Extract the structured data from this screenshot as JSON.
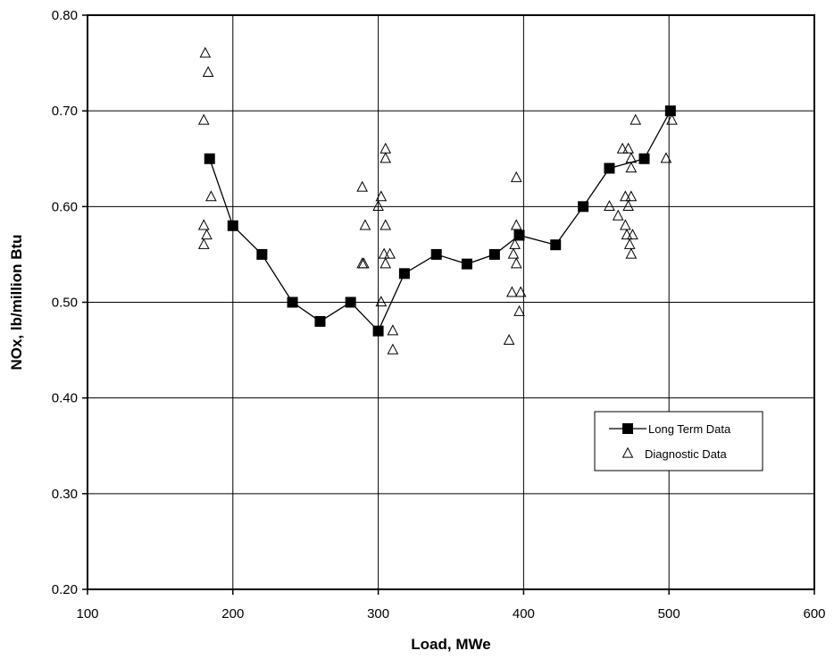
{
  "chart_data": {
    "type": "scatter",
    "title": "",
    "xlabel": "Load, MWe",
    "ylabel": "NOx, lb/million Btu",
    "xlim": [
      100,
      600
    ],
    "ylim": [
      0.2,
      0.8
    ],
    "x_ticks": [
      100,
      200,
      300,
      400,
      500,
      600
    ],
    "y_ticks": [
      0.2,
      0.3,
      0.4,
      0.5,
      0.6,
      0.7,
      0.8
    ],
    "x_tick_labels": [
      "100",
      "200",
      "300",
      "400",
      "500",
      "600"
    ],
    "y_tick_labels": [
      "0.20",
      "0.30",
      "0.40",
      "0.50",
      "0.60",
      "0.70",
      "0.80"
    ],
    "grid": true,
    "legend_position": "right",
    "series": [
      {
        "name": "Long Term Data",
        "marker": "filled-square",
        "line": true,
        "color": "#000000",
        "points": [
          [
            184,
            0.65
          ],
          [
            200,
            0.58
          ],
          [
            220,
            0.55
          ],
          [
            241,
            0.5
          ],
          [
            260,
            0.48
          ],
          [
            281,
            0.5
          ],
          [
            300,
            0.47
          ],
          [
            318,
            0.53
          ],
          [
            340,
            0.55
          ],
          [
            361,
            0.54
          ],
          [
            380,
            0.55
          ],
          [
            397,
            0.57
          ],
          [
            422,
            0.56
          ],
          [
            441,
            0.6
          ],
          [
            459,
            0.64
          ],
          [
            483,
            0.65
          ],
          [
            501,
            0.7
          ]
        ]
      },
      {
        "name": "Diagnostic Data",
        "marker": "open-triangle",
        "line": false,
        "color": "#000000",
        "points": [
          [
            181,
            0.76
          ],
          [
            183,
            0.74
          ],
          [
            180,
            0.69
          ],
          [
            185,
            0.61
          ],
          [
            180,
            0.58
          ],
          [
            182,
            0.57
          ],
          [
            180,
            0.56
          ],
          [
            289,
            0.62
          ],
          [
            291,
            0.58
          ],
          [
            289,
            0.54
          ],
          [
            290,
            0.54
          ],
          [
            302,
            0.61
          ],
          [
            300,
            0.6
          ],
          [
            305,
            0.66
          ],
          [
            305,
            0.65
          ],
          [
            305,
            0.58
          ],
          [
            304,
            0.55
          ],
          [
            308,
            0.55
          ],
          [
            305,
            0.54
          ],
          [
            302,
            0.5
          ],
          [
            310,
            0.47
          ],
          [
            310,
            0.45
          ],
          [
            395,
            0.63
          ],
          [
            395,
            0.58
          ],
          [
            394,
            0.56
          ],
          [
            393,
            0.55
          ],
          [
            395,
            0.54
          ],
          [
            392,
            0.51
          ],
          [
            398,
            0.51
          ],
          [
            397,
            0.49
          ],
          [
            390,
            0.46
          ],
          [
            459,
            0.6
          ],
          [
            465,
            0.59
          ],
          [
            468,
            0.66
          ],
          [
            472,
            0.66
          ],
          [
            477,
            0.69
          ],
          [
            470,
            0.61
          ],
          [
            474,
            0.61
          ],
          [
            474,
            0.65
          ],
          [
            470,
            0.58
          ],
          [
            474,
            0.64
          ],
          [
            472,
            0.6
          ],
          [
            471,
            0.57
          ],
          [
            475,
            0.57
          ],
          [
            473,
            0.56
          ],
          [
            474,
            0.55
          ],
          [
            498,
            0.65
          ],
          [
            502,
            0.69
          ]
        ]
      }
    ]
  }
}
